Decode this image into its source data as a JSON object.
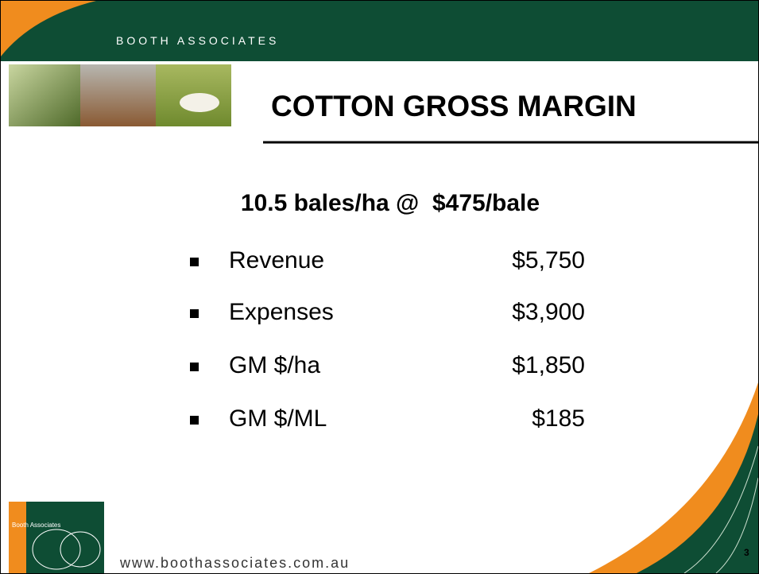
{
  "header": {
    "brand": "BOOTH ASSOCIATES",
    "title": "COTTON GROSS MARGIN"
  },
  "subtitle": "10.5 bales/ha @  $475/bale",
  "items": [
    {
      "label": "Revenue",
      "value": "$5,750"
    },
    {
      "label": "Expenses",
      "value": "$3,900"
    },
    {
      "label": "GM $/ha",
      "value": "$1,850"
    },
    {
      "label": "GM $/ML",
      "value": "$185"
    }
  ],
  "footer": {
    "logo": "Booth Associates",
    "url": "www.boothassociates.com.au",
    "page": "3"
  }
}
